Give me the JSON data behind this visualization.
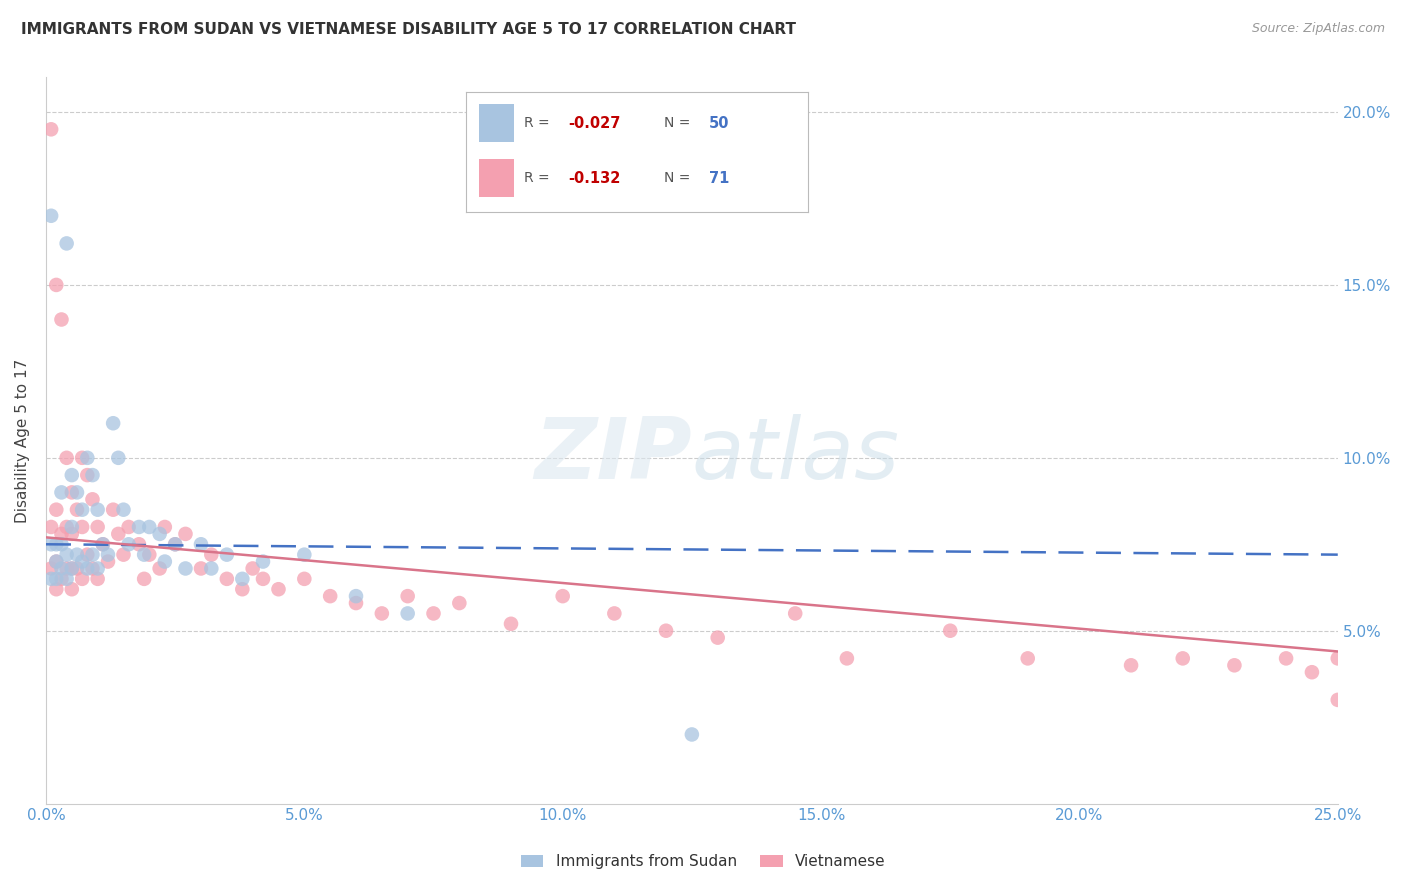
{
  "title": "IMMIGRANTS FROM SUDAN VS VIETNAMESE DISABILITY AGE 5 TO 17 CORRELATION CHART",
  "source": "Source: ZipAtlas.com",
  "ylabel": "Disability Age 5 to 17",
  "xlim": [
    0.0,
    0.25
  ],
  "ylim": [
    0.0,
    0.21
  ],
  "xticks": [
    0.0,
    0.05,
    0.1,
    0.15,
    0.2,
    0.25
  ],
  "yticks": [
    0.05,
    0.1,
    0.15,
    0.2
  ],
  "xticklabels": [
    "0.0%",
    "5.0%",
    "10.0%",
    "15.0%",
    "20.0%",
    "25.0%"
  ],
  "yticklabels_right": [
    "5.0%",
    "10.0%",
    "15.0%",
    "20.0%"
  ],
  "sudan_color": "#a8c4e0",
  "vietnamese_color": "#f4a0b0",
  "sudan_line_color": "#4472c4",
  "vietnamese_line_color": "#d9748a",
  "axis_color": "#5b9bd5",
  "legend_R_color": "#c00000",
  "legend_N_color": "#4472c4",
  "sudan_line_y0": 0.075,
  "sudan_line_y1": 0.072,
  "viet_line_y0": 0.077,
  "viet_line_y1": 0.044,
  "sudan_x": [
    0.001,
    0.001,
    0.001,
    0.002,
    0.002,
    0.002,
    0.003,
    0.003,
    0.003,
    0.004,
    0.004,
    0.004,
    0.005,
    0.005,
    0.005,
    0.006,
    0.006,
    0.007,
    0.007,
    0.008,
    0.008,
    0.009,
    0.009,
    0.01,
    0.01,
    0.011,
    0.012,
    0.013,
    0.014,
    0.015,
    0.016,
    0.018,
    0.019,
    0.02,
    0.022,
    0.023,
    0.025,
    0.027,
    0.03,
    0.032,
    0.035,
    0.038,
    0.042,
    0.05,
    0.06,
    0.07,
    0.125
  ],
  "sudan_y": [
    0.17,
    0.075,
    0.065,
    0.075,
    0.07,
    0.065,
    0.09,
    0.075,
    0.068,
    0.162,
    0.072,
    0.065,
    0.095,
    0.08,
    0.068,
    0.09,
    0.072,
    0.085,
    0.07,
    0.1,
    0.068,
    0.095,
    0.072,
    0.085,
    0.068,
    0.075,
    0.072,
    0.11,
    0.1,
    0.085,
    0.075,
    0.08,
    0.072,
    0.08,
    0.078,
    0.07,
    0.075,
    0.068,
    0.075,
    0.068,
    0.072,
    0.065,
    0.07,
    0.072,
    0.06,
    0.055,
    0.02
  ],
  "vietnamese_x": [
    0.001,
    0.001,
    0.001,
    0.002,
    0.002,
    0.002,
    0.002,
    0.003,
    0.003,
    0.003,
    0.004,
    0.004,
    0.004,
    0.005,
    0.005,
    0.005,
    0.005,
    0.006,
    0.006,
    0.007,
    0.007,
    0.007,
    0.008,
    0.008,
    0.009,
    0.009,
    0.01,
    0.01,
    0.011,
    0.012,
    0.013,
    0.014,
    0.015,
    0.016,
    0.018,
    0.019,
    0.02,
    0.022,
    0.023,
    0.025,
    0.027,
    0.03,
    0.032,
    0.035,
    0.038,
    0.04,
    0.042,
    0.045,
    0.05,
    0.055,
    0.06,
    0.065,
    0.07,
    0.075,
    0.08,
    0.09,
    0.1,
    0.11,
    0.12,
    0.13,
    0.145,
    0.155,
    0.175,
    0.19,
    0.21,
    0.22,
    0.23,
    0.24,
    0.245,
    0.25,
    0.25
  ],
  "vietnamese_y": [
    0.195,
    0.08,
    0.068,
    0.15,
    0.085,
    0.07,
    0.062,
    0.14,
    0.078,
    0.065,
    0.1,
    0.08,
    0.068,
    0.09,
    0.078,
    0.068,
    0.062,
    0.085,
    0.068,
    0.1,
    0.08,
    0.065,
    0.095,
    0.072,
    0.088,
    0.068,
    0.08,
    0.065,
    0.075,
    0.07,
    0.085,
    0.078,
    0.072,
    0.08,
    0.075,
    0.065,
    0.072,
    0.068,
    0.08,
    0.075,
    0.078,
    0.068,
    0.072,
    0.065,
    0.062,
    0.068,
    0.065,
    0.062,
    0.065,
    0.06,
    0.058,
    0.055,
    0.06,
    0.055,
    0.058,
    0.052,
    0.06,
    0.055,
    0.05,
    0.048,
    0.055,
    0.042,
    0.05,
    0.042,
    0.04,
    0.042,
    0.04,
    0.042,
    0.038,
    0.042,
    0.03
  ]
}
